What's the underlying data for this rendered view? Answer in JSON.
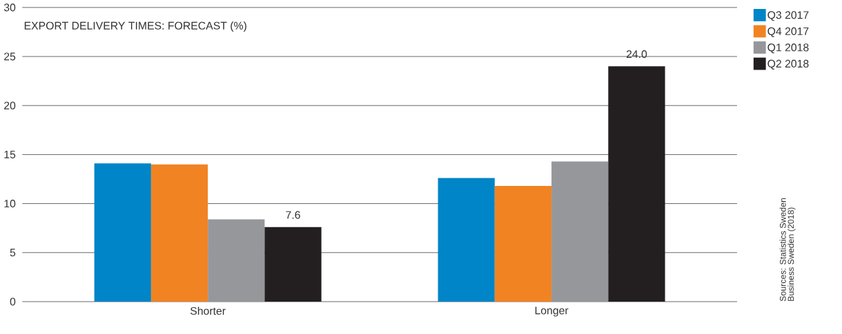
{
  "chart_data": {
    "type": "bar",
    "title": "EXPORT DELIVERY TIMES: FORECAST (%)",
    "categories": [
      "Shorter",
      "Longer"
    ],
    "series": [
      {
        "name": "Q3 2017",
        "color": "#0085c8",
        "values": [
          14.1,
          12.6
        ]
      },
      {
        "name": "Q4 2017",
        "color": "#f28322",
        "values": [
          14.0,
          11.8
        ]
      },
      {
        "name": "Q1 2018",
        "color": "#96979b",
        "values": [
          8.4,
          14.3
        ]
      },
      {
        "name": "Q2 2018",
        "color": "#231f20",
        "values": [
          7.6,
          24.0
        ],
        "value_labels": [
          "7.6",
          "24.0"
        ]
      }
    ],
    "ylim": [
      0,
      30
    ],
    "yticks": [
      0,
      5,
      10,
      15,
      20,
      25,
      30
    ],
    "grid": "y",
    "legend": "top right",
    "annotations": [
      "Sources: Statistics Sweden",
      "Business Sweden (2018)"
    ]
  }
}
